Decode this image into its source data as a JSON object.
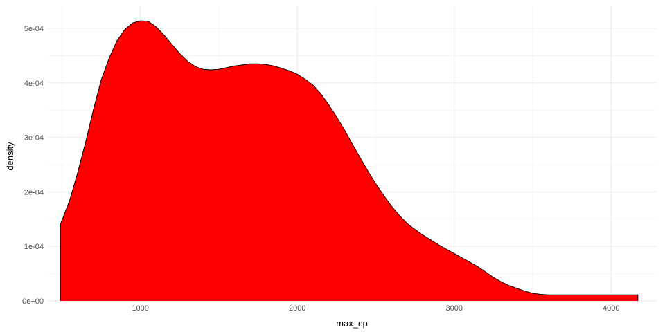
{
  "chart_data": {
    "type": "area",
    "title": "",
    "xlabel": "max_cp",
    "ylabel": "density",
    "x_ticks": [
      1000,
      2000,
      3000,
      4000
    ],
    "x_tick_labels": [
      "1000",
      "2000",
      "3000",
      "4000"
    ],
    "y_ticks": [
      0,
      0.0001,
      0.0002,
      0.0003,
      0.0004,
      0.0005
    ],
    "y_tick_labels": [
      "0e+00",
      "1e-04",
      "2e-04",
      "3e-04",
      "4e-04",
      "5e-04"
    ],
    "xlim": [
      410,
      4290
    ],
    "ylim": [
      0,
      0.000542
    ],
    "grid": true,
    "legend": "none",
    "fill_color": "#ff0000",
    "line_color": "#000000",
    "series": [
      {
        "x": [
          490,
          550,
          600,
          650,
          700,
          750,
          800,
          850,
          900,
          950,
          1000,
          1050,
          1100,
          1150,
          1200,
          1250,
          1300,
          1350,
          1400,
          1450,
          1500,
          1550,
          1600,
          1650,
          1700,
          1750,
          1800,
          1850,
          1900,
          1950,
          2000,
          2050,
          2100,
          2150,
          2200,
          2250,
          2300,
          2350,
          2400,
          2450,
          2500,
          2550,
          2600,
          2650,
          2700,
          2750,
          2800,
          2850,
          2900,
          2950,
          3000,
          3050,
          3100,
          3150,
          3200,
          3250,
          3300,
          3350,
          3400,
          3450,
          3500,
          3550,
          3600,
          3650,
          3700,
          3750,
          3800,
          3850,
          3900,
          3950,
          4000,
          4050,
          4100,
          4150,
          4170
        ],
        "y": [
          0.00014,
          0.000185,
          0.000235,
          0.00029,
          0.00035,
          0.000405,
          0.000445,
          0.000477,
          0.000498,
          0.00051,
          0.000514,
          0.000513,
          0.000503,
          0.000488,
          0.000471,
          0.000454,
          0.00044,
          0.00043,
          0.000425,
          0.000424,
          0.000425,
          0.000428,
          0.000431,
          0.000433,
          0.000435,
          0.000435,
          0.000434,
          0.000431,
          0.000427,
          0.000422,
          0.000416,
          0.000407,
          0.000396,
          0.00038,
          0.00036,
          0.000338,
          0.000314,
          0.000288,
          0.000263,
          0.000238,
          0.000215,
          0.000194,
          0.000174,
          0.000157,
          0.000142,
          0.000131,
          0.000121,
          0.000112,
          0.000103,
          9.5e-05,
          8.7e-05,
          7.9e-05,
          7.1e-05,
          6.3e-05,
          5.3e-05,
          4.3e-05,
          3.5e-05,
          2.8e-05,
          2.3e-05,
          1.8e-05,
          1.4e-05,
          1.2e-05,
          1.1e-05,
          1.1e-05,
          1.1e-05,
          1.1e-05,
          1.1e-05,
          1.1e-05,
          1.1e-05,
          1.1e-05,
          1.1e-05,
          1.1e-05,
          1.1e-05,
          1.1e-05,
          1.1e-05
        ]
      }
    ]
  }
}
